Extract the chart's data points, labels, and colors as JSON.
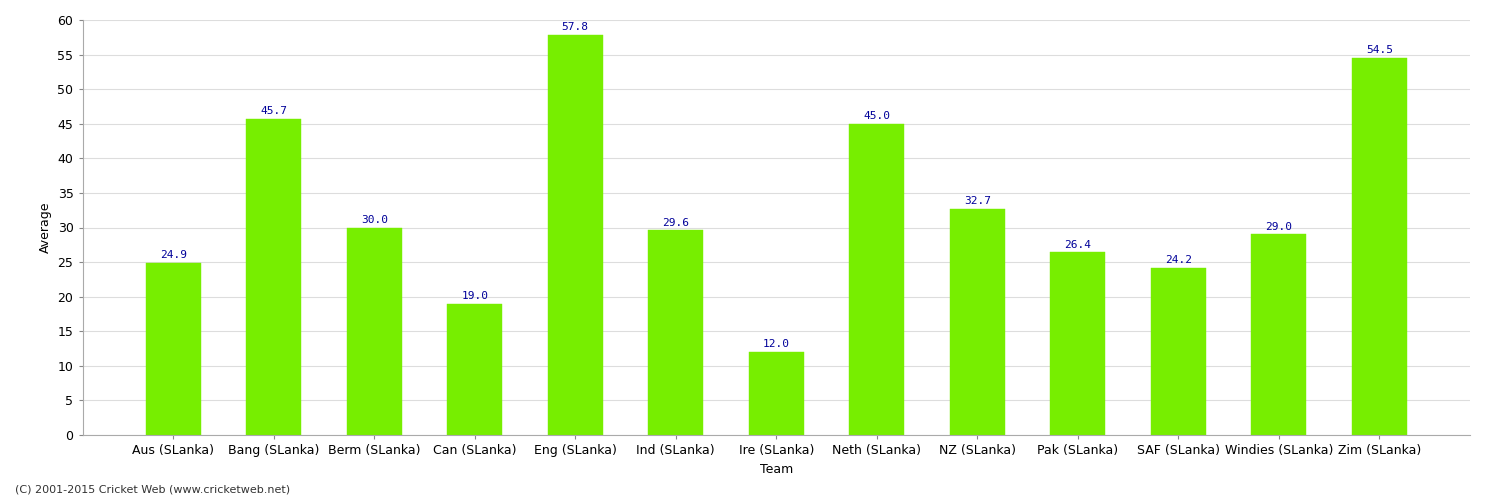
{
  "categories": [
    "Aus (SLanka)",
    "Bang (SLanka)",
    "Berm (SLanka)",
    "Can (SLanka)",
    "Eng (SLanka)",
    "Ind (SLanka)",
    "Ire (SLanka)",
    "Neth (SLanka)",
    "NZ (SLanka)",
    "Pak (SLanka)",
    "SAF (SLanka)",
    "Windies (SLanka)",
    "Zim (SLanka)"
  ],
  "values": [
    24.9,
    45.7,
    30.0,
    19.0,
    57.8,
    29.6,
    12.0,
    45.0,
    32.7,
    26.4,
    24.2,
    29.0,
    54.5
  ],
  "bar_color": "#77ee00",
  "bar_edge_color": "#77ee00",
  "label_color": "#000099",
  "ylabel": "Average",
  "xlabel": "Team",
  "ylim": [
    0,
    60
  ],
  "yticks": [
    0,
    5,
    10,
    15,
    20,
    25,
    30,
    35,
    40,
    45,
    50,
    55,
    60
  ],
  "grid_color": "#dddddd",
  "background_color": "#ffffff",
  "footnote": "(C) 2001-2015 Cricket Web (www.cricketweb.net)",
  "ylabel_fontsize": 9,
  "xlabel_fontsize": 9,
  "tick_fontsize": 9,
  "annotation_fontsize": 8,
  "footnote_fontsize": 8
}
